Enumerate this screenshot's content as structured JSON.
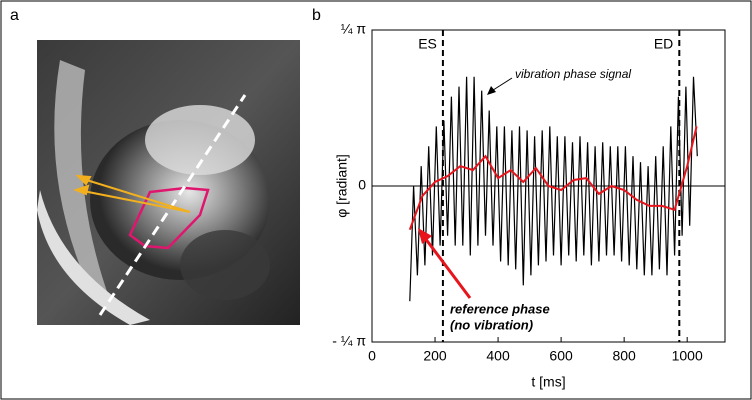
{
  "panel_labels": [
    "a",
    "b"
  ],
  "chart_data": {
    "type": "line",
    "xlabel": "t [ms]",
    "ylabel": "φ [radiant]",
    "xlim": [
      0,
      1120
    ],
    "xticks": [
      0,
      200,
      400,
      600,
      800,
      1000
    ],
    "ylim": [
      -0.7854,
      0.7854
    ],
    "yticks": [
      {
        "value": -0.7854,
        "label": "- ¼ π"
      },
      0,
      {
        "value": 0.7854,
        "label": "¼ π"
      }
    ],
    "markers": [
      {
        "label": "ES",
        "x": 225
      },
      {
        "label": "ED",
        "x": 975
      }
    ],
    "annotations": [
      {
        "text": "vibration phase signal",
        "color": "#000000"
      },
      {
        "text": "reference phase",
        "color": "#e8141c"
      },
      {
        "text": "(no vibration)",
        "color": "#e8141c"
      }
    ],
    "series": [
      {
        "color": "#000000",
        "x": [
          120,
          132,
          144,
          156,
          168,
          180,
          192,
          204,
          216,
          228,
          240,
          252,
          264,
          276,
          288,
          300,
          312,
          324,
          336,
          348,
          360,
          372,
          384,
          396,
          408,
          420,
          432,
          444,
          456,
          468,
          480,
          492,
          504,
          516,
          528,
          540,
          552,
          564,
          576,
          588,
          600,
          612,
          624,
          636,
          648,
          660,
          672,
          684,
          696,
          708,
          720,
          732,
          744,
          756,
          768,
          780,
          792,
          804,
          816,
          828,
          840,
          852,
          864,
          876,
          888,
          900,
          912,
          924,
          936,
          948,
          960,
          972,
          984,
          996,
          1008,
          1020,
          1032
        ],
        "values": [
          -0.58,
          0.0,
          -0.45,
          0.1,
          -0.4,
          0.2,
          -0.35,
          0.3,
          -0.3,
          0.33,
          -0.25,
          0.45,
          -0.3,
          0.5,
          -0.3,
          0.55,
          -0.35,
          0.55,
          -0.3,
          0.48,
          -0.25,
          0.38,
          -0.3,
          0.3,
          -0.38,
          0.3,
          -0.4,
          0.28,
          -0.42,
          0.3,
          -0.5,
          0.28,
          -0.45,
          0.25,
          -0.4,
          0.28,
          -0.38,
          0.3,
          -0.35,
          0.25,
          -0.4,
          0.25,
          -0.35,
          0.22,
          -0.38,
          0.25,
          -0.35,
          0.22,
          -0.4,
          0.2,
          -0.38,
          0.22,
          -0.35,
          0.2,
          -0.35,
          0.2,
          -0.38,
          0.2,
          -0.4,
          0.15,
          -0.42,
          0.12,
          -0.45,
          0.1,
          -0.45,
          0.15,
          -0.42,
          0.2,
          -0.45,
          0.3,
          -0.35,
          0.45,
          -0.25,
          0.5,
          -0.2,
          0.55,
          0.15
        ]
      },
      {
        "color": "#e8141c",
        "x": [
          120,
          160,
          200,
          240,
          280,
          320,
          360,
          400,
          440,
          480,
          520,
          560,
          600,
          640,
          680,
          720,
          760,
          800,
          840,
          880,
          920,
          960,
          1000,
          1030
        ],
        "values": [
          -0.22,
          -0.05,
          0.02,
          0.05,
          0.1,
          0.08,
          0.15,
          0.04,
          0.08,
          0.02,
          0.09,
          0.0,
          -0.02,
          0.03,
          0.04,
          -0.04,
          0.0,
          -0.02,
          -0.07,
          -0.1,
          -0.1,
          -0.12,
          0.1,
          0.3
        ]
      }
    ]
  }
}
